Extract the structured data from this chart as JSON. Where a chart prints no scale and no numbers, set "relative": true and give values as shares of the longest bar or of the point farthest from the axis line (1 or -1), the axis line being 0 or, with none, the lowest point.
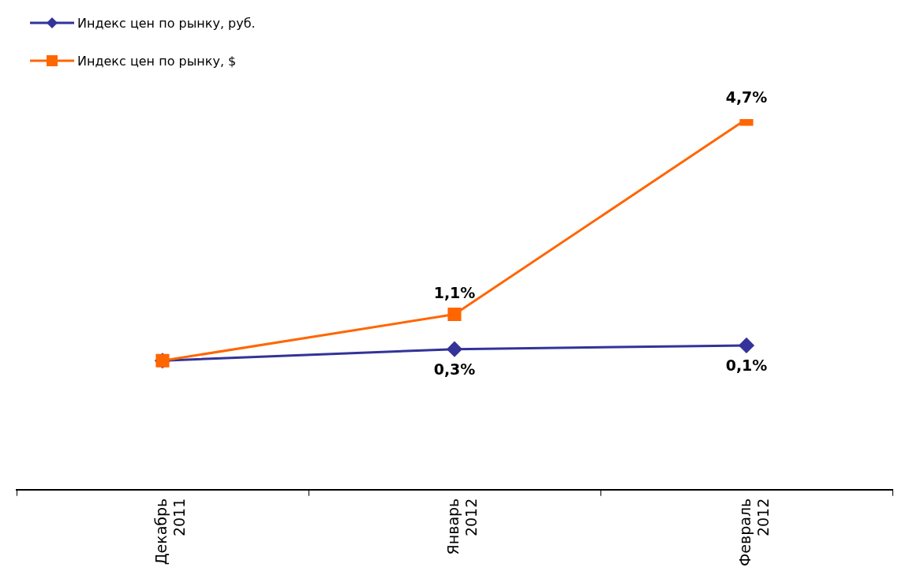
{
  "chart_data": {
    "type": "line",
    "relative": true,
    "categories": [
      "Декабрь 2011",
      "Январь 2012",
      "Февраль 2012"
    ],
    "legend": "top left",
    "grid": false,
    "series": [
      {
        "name": "Индекс цен по рынку, руб.",
        "color": "#333399",
        "marker": "diamond",
        "values": [
          0.348,
          0.379,
          0.389
        ]
      },
      {
        "name": "Индекс цен по рынку, $",
        "color": "#ff6600",
        "marker": "square",
        "values": [
          0.348,
          0.473,
          1
        ]
      }
    ],
    "annotations": [
      {
        "text": "0,3%",
        "x": "Январь 2012",
        "y": 0.379
      },
      {
        "text": "0,1%",
        "x": "Февраль 2012",
        "y": 0.389
      },
      {
        "text": "1,1%",
        "x": "Январь 2012",
        "y": 0.473
      },
      {
        "text": "4,7%",
        "x": "Февраль 2012",
        "y": 1
      }
    ]
  }
}
